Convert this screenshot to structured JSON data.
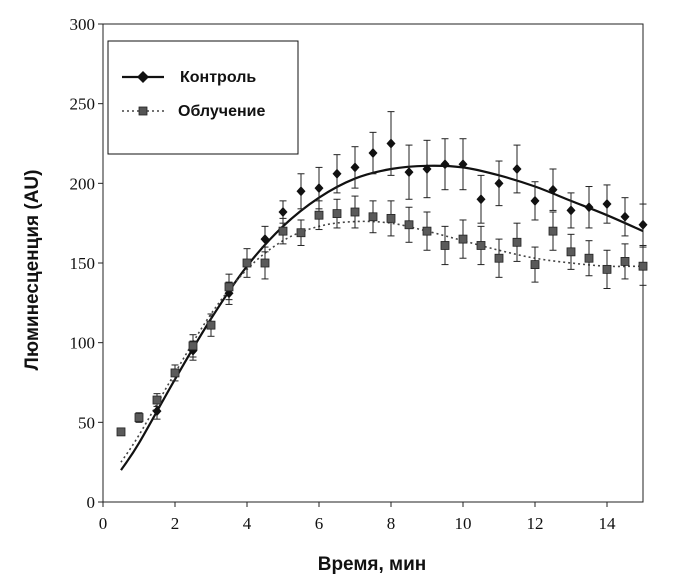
{
  "chart_data": {
    "type": "scatter",
    "xlabel": "Время, мин",
    "ylabel": "Люминесценция (AU)",
    "xlim": [
      0,
      15
    ],
    "ylim": [
      0,
      300
    ],
    "xticks": [
      "0",
      "2",
      "4",
      "6",
      "8",
      "10",
      "12",
      "14"
    ],
    "xtick_values": [
      0,
      2,
      4,
      6,
      8,
      10,
      12,
      14
    ],
    "yticks": [
      "0",
      "50",
      "100",
      "150",
      "200",
      "250",
      "300"
    ],
    "ytick_values": [
      0,
      50,
      100,
      150,
      200,
      250,
      300
    ],
    "legend": {
      "placement": "top-left"
    },
    "series": [
      {
        "name": "Контроль",
        "marker": "diamond",
        "line": "solid",
        "color": "#111111",
        "points": [
          {
            "x": 1.5,
            "y": 57,
            "err": 5
          },
          {
            "x": 2.5,
            "y": 95,
            "err": 6
          },
          {
            "x": 3.5,
            "y": 131,
            "err": 7
          },
          {
            "x": 4.5,
            "y": 165,
            "err": 8
          },
          {
            "x": 5.0,
            "y": 182,
            "err": 7
          },
          {
            "x": 5.5,
            "y": 195,
            "err": 11
          },
          {
            "x": 6.0,
            "y": 197,
            "err": 13
          },
          {
            "x": 6.5,
            "y": 206,
            "err": 12
          },
          {
            "x": 7.0,
            "y": 210,
            "err": 13
          },
          {
            "x": 7.5,
            "y": 219,
            "err": 13
          },
          {
            "x": 8.0,
            "y": 225,
            "err": 20
          },
          {
            "x": 8.5,
            "y": 207,
            "err": 17
          },
          {
            "x": 9.0,
            "y": 209,
            "err": 18
          },
          {
            "x": 9.5,
            "y": 212,
            "err": 16
          },
          {
            "x": 10.0,
            "y": 212,
            "err": 16
          },
          {
            "x": 10.5,
            "y": 190,
            "err": 15
          },
          {
            "x": 11.0,
            "y": 200,
            "err": 14
          },
          {
            "x": 11.5,
            "y": 209,
            "err": 15
          },
          {
            "x": 12.0,
            "y": 189,
            "err": 12
          },
          {
            "x": 12.5,
            "y": 196,
            "err": 13
          },
          {
            "x": 13.0,
            "y": 183,
            "err": 11
          },
          {
            "x": 13.5,
            "y": 185,
            "err": 13
          },
          {
            "x": 14.0,
            "y": 187,
            "err": 12
          },
          {
            "x": 14.5,
            "y": 179,
            "err": 12
          },
          {
            "x": 15.0,
            "y": 174,
            "err": 13
          }
        ],
        "fit": [
          [
            0.5,
            20
          ],
          [
            1,
            37
          ],
          [
            2,
            77
          ],
          [
            3,
            115
          ],
          [
            4,
            148
          ],
          [
            5,
            173
          ],
          [
            6,
            191
          ],
          [
            7,
            203
          ],
          [
            8,
            209
          ],
          [
            9,
            211
          ],
          [
            10,
            210
          ],
          [
            11,
            205
          ],
          [
            12,
            198
          ],
          [
            13,
            189
          ],
          [
            14,
            180
          ],
          [
            15,
            170
          ]
        ]
      },
      {
        "name": "Облучение",
        "marker": "square",
        "line": "dotted",
        "color": "#444444",
        "points": [
          {
            "x": 0.5,
            "y": 44,
            "err": 0
          },
          {
            "x": 1.0,
            "y": 53,
            "err": 3
          },
          {
            "x": 1.5,
            "y": 64,
            "err": 4
          },
          {
            "x": 2.0,
            "y": 81,
            "err": 5
          },
          {
            "x": 2.5,
            "y": 98,
            "err": 7
          },
          {
            "x": 3.0,
            "y": 111,
            "err": 7
          },
          {
            "x": 3.5,
            "y": 135,
            "err": 8
          },
          {
            "x": 4.0,
            "y": 150,
            "err": 9
          },
          {
            "x": 4.5,
            "y": 150,
            "err": 10
          },
          {
            "x": 5.0,
            "y": 170,
            "err": 8
          },
          {
            "x": 5.5,
            "y": 169,
            "err": 8
          },
          {
            "x": 6.0,
            "y": 180,
            "err": 9
          },
          {
            "x": 6.5,
            "y": 181,
            "err": 9
          },
          {
            "x": 7.0,
            "y": 182,
            "err": 10
          },
          {
            "x": 7.5,
            "y": 179,
            "err": 10
          },
          {
            "x": 8.0,
            "y": 178,
            "err": 11
          },
          {
            "x": 8.5,
            "y": 174,
            "err": 11
          },
          {
            "x": 9.0,
            "y": 170,
            "err": 12
          },
          {
            "x": 9.5,
            "y": 161,
            "err": 12
          },
          {
            "x": 10.0,
            "y": 165,
            "err": 12
          },
          {
            "x": 10.5,
            "y": 161,
            "err": 12
          },
          {
            "x": 11.0,
            "y": 153,
            "err": 12
          },
          {
            "x": 11.5,
            "y": 163,
            "err": 12
          },
          {
            "x": 12.0,
            "y": 149,
            "err": 11
          },
          {
            "x": 12.5,
            "y": 170,
            "err": 12
          },
          {
            "x": 13.0,
            "y": 157,
            "err": 11
          },
          {
            "x": 13.5,
            "y": 153,
            "err": 11
          },
          {
            "x": 14.0,
            "y": 146,
            "err": 12
          },
          {
            "x": 14.5,
            "y": 151,
            "err": 11
          },
          {
            "x": 15.0,
            "y": 148,
            "err": 12
          }
        ],
        "fit": [
          [
            0.5,
            25
          ],
          [
            1,
            42
          ],
          [
            2,
            81
          ],
          [
            3,
            118
          ],
          [
            4,
            146
          ],
          [
            5,
            164
          ],
          [
            6,
            173
          ],
          [
            7,
            176
          ],
          [
            8,
            175
          ],
          [
            9,
            170
          ],
          [
            10,
            164
          ],
          [
            11,
            158
          ],
          [
            12,
            153
          ],
          [
            13,
            150
          ],
          [
            14,
            148
          ],
          [
            15,
            148
          ]
        ]
      }
    ]
  }
}
